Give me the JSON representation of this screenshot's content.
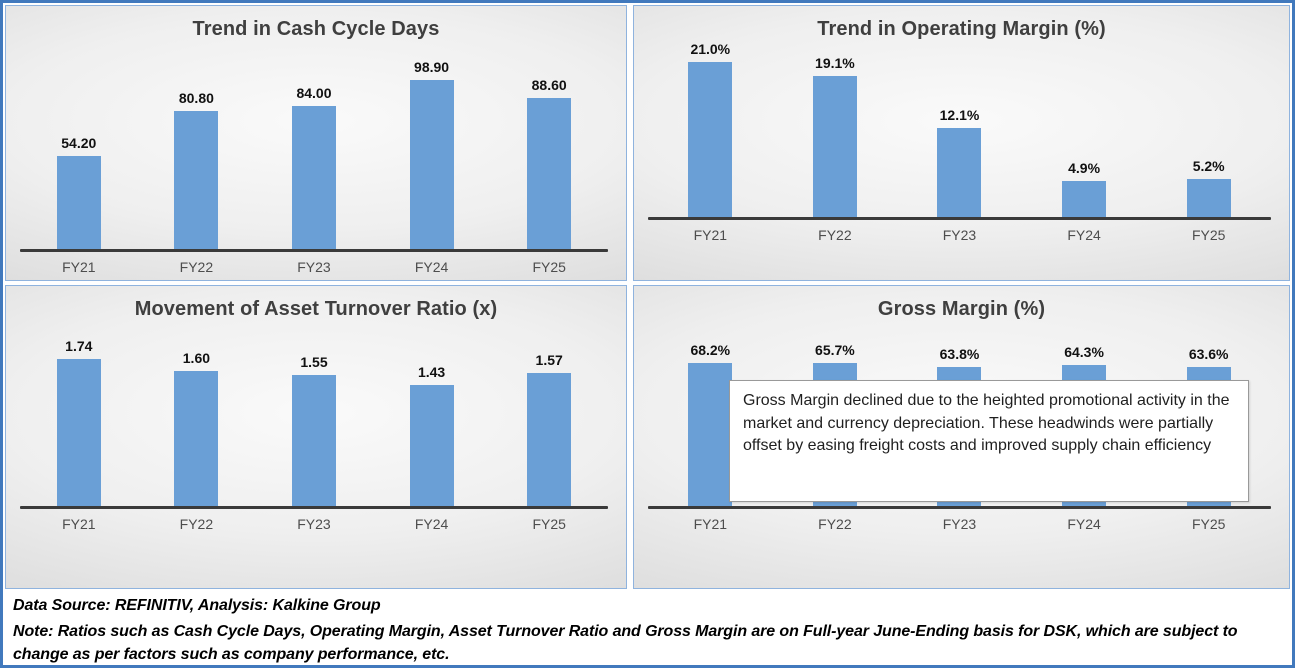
{
  "colors": {
    "bar": "#6A9FD6",
    "frame_border": "#4179BD",
    "panel_border": "#8FB3DE",
    "axis": "#3a3a3a",
    "title_text": "#3f3f3f"
  },
  "chart_data": [
    {
      "id": "cash-cycle-days",
      "type": "bar",
      "title": "Trend in Cash Cycle Days",
      "categories": [
        "FY21",
        "FY22",
        "FY23",
        "FY24",
        "FY25"
      ],
      "values": [
        54.2,
        80.8,
        84.0,
        98.9,
        88.6
      ],
      "labels": [
        "54.20",
        "80.80",
        "84.00",
        "98.90",
        "88.60"
      ],
      "xlabel": "",
      "ylabel": "",
      "ylim": [
        0,
        120
      ],
      "grid": false,
      "legend": "none",
      "data_labels": "above-bars"
    },
    {
      "id": "operating-margin",
      "type": "bar",
      "title": "Trend in Operating Margin (%)",
      "categories": [
        "FY21",
        "FY22",
        "FY23",
        "FY24",
        "FY25"
      ],
      "values": [
        21.0,
        19.1,
        12.1,
        4.9,
        5.2
      ],
      "labels": [
        "21.0%",
        "19.1%",
        "12.1%",
        "4.9%",
        "5.2%"
      ],
      "xlabel": "",
      "ylabel": "",
      "ylim": [
        0,
        25
      ],
      "grid": false,
      "legend": "none",
      "data_labels": "above-bars"
    },
    {
      "id": "asset-turnover-ratio",
      "type": "bar",
      "title": "Movement of Asset Turnover Ratio (x)",
      "categories": [
        "FY21",
        "FY22",
        "FY23",
        "FY24",
        "FY25"
      ],
      "values": [
        1.74,
        1.6,
        1.55,
        1.43,
        1.57
      ],
      "labels": [
        "1.74",
        "1.60",
        "1.55",
        "1.43",
        "1.57"
      ],
      "xlabel": "",
      "ylabel": "",
      "ylim": [
        0,
        2.0
      ],
      "grid": false,
      "legend": "none",
      "data_labels": "above-bars"
    },
    {
      "id": "gross-margin",
      "type": "bar",
      "title": "Gross Margin (%)",
      "categories": [
        "FY21",
        "FY22",
        "FY23",
        "FY24",
        "FY25"
      ],
      "values": [
        68.2,
        65.7,
        63.8,
        64.3,
        63.6
      ],
      "labels": [
        "68.2%",
        "65.7%",
        "63.8%",
        "64.3%",
        "63.6%"
      ],
      "xlabel": "",
      "ylabel": "",
      "ylim": [
        0,
        75
      ],
      "grid": false,
      "legend": "none",
      "data_labels": "above-bars",
      "annotation": "Gross Margin declined due to the heighted promotional activity in the market and currency depreciation. These headwinds were partially offset by easing freight costs and improved supply chain efficiency"
    }
  ],
  "footer": {
    "source_line": "Data Source: REFINITIV, Analysis: Kalkine Group",
    "note_line": "Note: Ratios such as Cash Cycle Days, Operating Margin, Asset Turnover Ratio and Gross Margin are on Full-year June-Ending basis for DSK, which are subject to change as per factors such as company performance, etc."
  }
}
